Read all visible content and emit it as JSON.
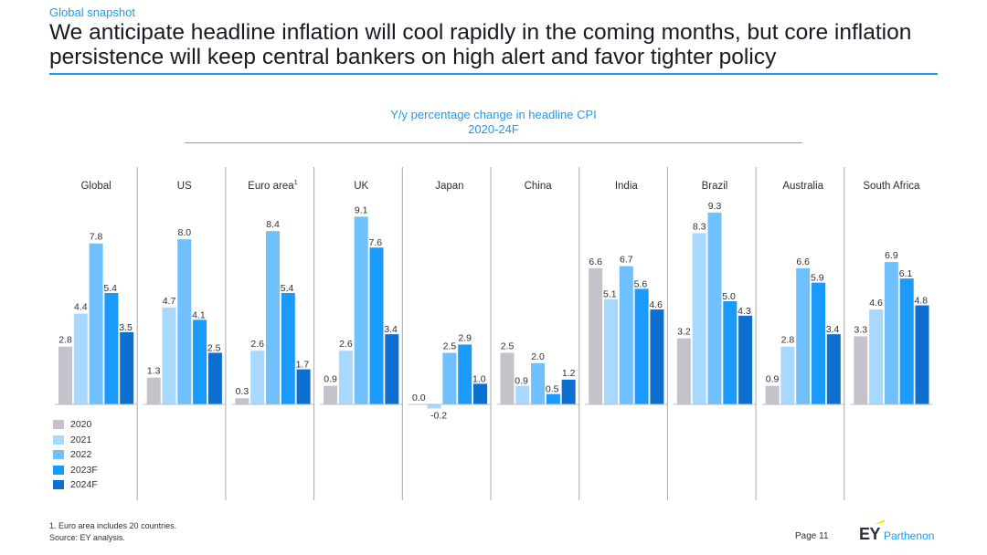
{
  "section_label": "Global snapshot",
  "headline": "We anticipate headline inflation will cool rapidly in the coming months, but core inflation persistence will keep central bankers on high alert and favor tighter policy",
  "chart_data": {
    "type": "bar",
    "title": "Y/y percentage change in headline CPI",
    "subtitle": "2020-24F",
    "categories": [
      "Global",
      "US",
      "Euro area",
      "UK",
      "Japan",
      "China",
      "India",
      "Brazil",
      "Australia",
      "South Africa"
    ],
    "category_superscripts": [
      "",
      "",
      "1",
      "",
      "",
      "",
      "",
      "",
      "",
      ""
    ],
    "series": [
      {
        "name": "2020",
        "color": "#c4c3cb",
        "values": [
          2.8,
          1.3,
          0.3,
          0.9,
          0.0,
          2.5,
          6.6,
          3.2,
          0.9,
          3.3
        ]
      },
      {
        "name": "2021",
        "color": "#a8d8fd",
        "values": [
          4.4,
          4.7,
          2.6,
          2.6,
          -0.2,
          0.9,
          5.1,
          8.3,
          2.8,
          4.6
        ]
      },
      {
        "name": "2022",
        "color": "#6fc0fc",
        "values": [
          7.8,
          8.0,
          8.4,
          9.1,
          2.5,
          2.0,
          6.7,
          9.3,
          6.6,
          6.9
        ]
      },
      {
        "name": "2023F",
        "color": "#1a9afa",
        "values": [
          5.4,
          4.1,
          5.4,
          7.6,
          2.9,
          0.5,
          5.6,
          5.0,
          5.9,
          6.1
        ]
      },
      {
        "name": "2024F",
        "color": "#0d6fd0",
        "values": [
          3.5,
          2.5,
          1.7,
          3.4,
          1.0,
          1.2,
          4.6,
          4.3,
          3.4,
          4.8
        ]
      }
    ],
    "value_labels": [
      [
        "2.8",
        "4.4",
        "7.8",
        "5.4",
        "3.5"
      ],
      [
        "1.3",
        "4.7",
        "8.0",
        "4.1",
        "2.5"
      ],
      [
        "0.3",
        "2.6",
        "8.4",
        "5.4",
        "1.7"
      ],
      [
        "0.9",
        "2.6",
        "9.1",
        "7.6",
        "3.4"
      ],
      [
        "0.0",
        "-0.2",
        "2.5",
        "2.9",
        "1.0"
      ],
      [
        "2.5",
        "0.9",
        "2.0",
        "0.5",
        "1.2"
      ],
      [
        "6.6",
        "5.1",
        "6.7",
        "5.6",
        "4.6"
      ],
      [
        "3.2",
        "8.3",
        "9.3",
        "5.0",
        "4.3"
      ],
      [
        "0.9",
        "2.8",
        "6.6",
        "5.9",
        "3.4"
      ],
      [
        "3.3",
        "4.6",
        "6.9",
        "6.1",
        "4.8"
      ]
    ],
    "xlabel": "",
    "ylabel": "",
    "legend_position": "bottom-left"
  },
  "footnote": "1.   Euro area includes 20 countries.",
  "source": "Source: EY analysis.",
  "page": "Page 11",
  "logo": {
    "brand": "EY",
    "name": "Parthenon"
  }
}
